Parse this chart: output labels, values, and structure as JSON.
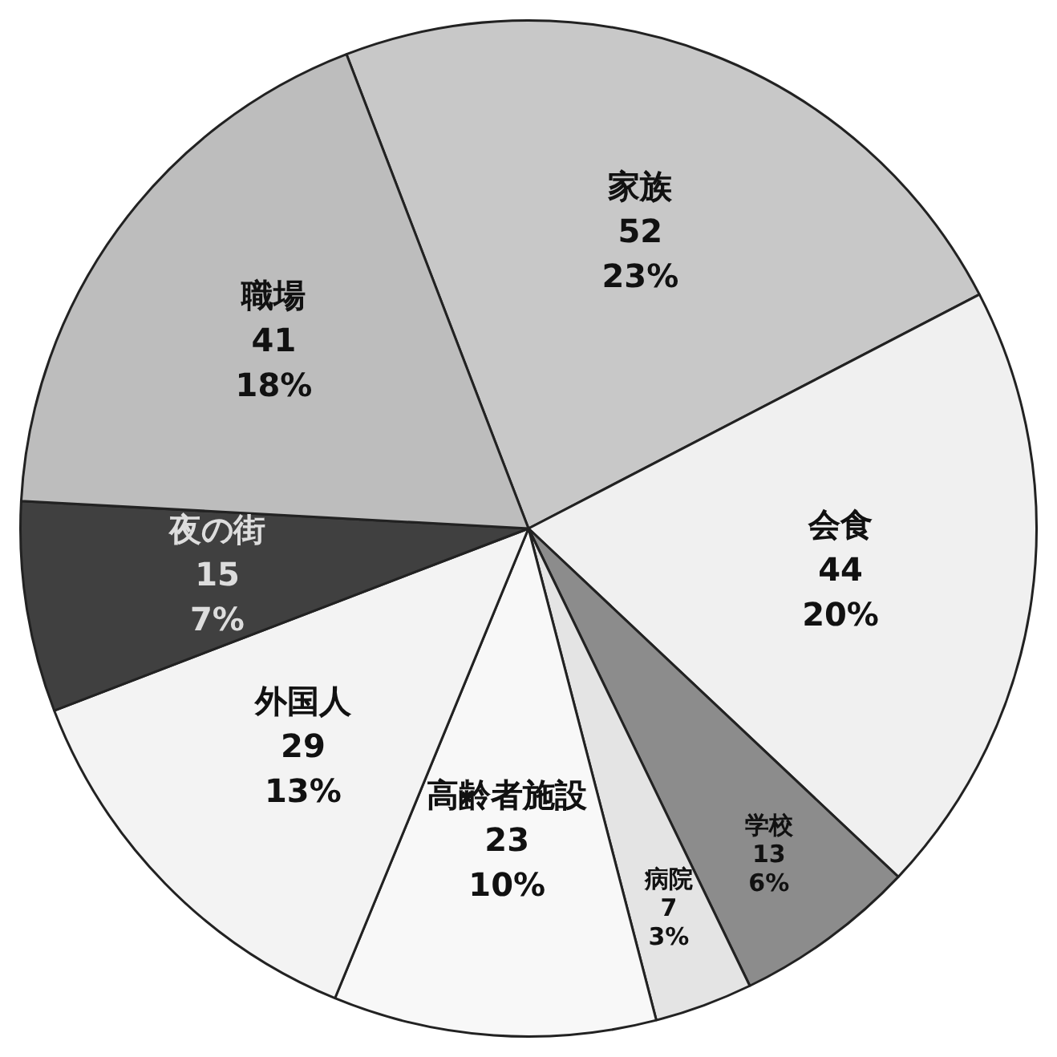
{
  "chart_data": {
    "type": "pie",
    "categories": [
      "家族",
      "会食",
      "学校",
      "病院",
      "高齢者施設",
      "外国人",
      "夜の街",
      "職場"
    ],
    "values": [
      52,
      44,
      13,
      7,
      23,
      29,
      15,
      41
    ],
    "value_labels": [
      "52 23%",
      "44 20%",
      "13 6%",
      "7 3%",
      "23 10%",
      "29 13%",
      "15 7%",
      "41 18%"
    ],
    "colors": [
      "#c8c8c8",
      "#f0f0f0",
      "#8c8c8c",
      "#e4e4e4",
      "#f8f8f8",
      "#f3f3f3",
      "#404040",
      "#bdbdbd"
    ],
    "legend": false
  }
}
